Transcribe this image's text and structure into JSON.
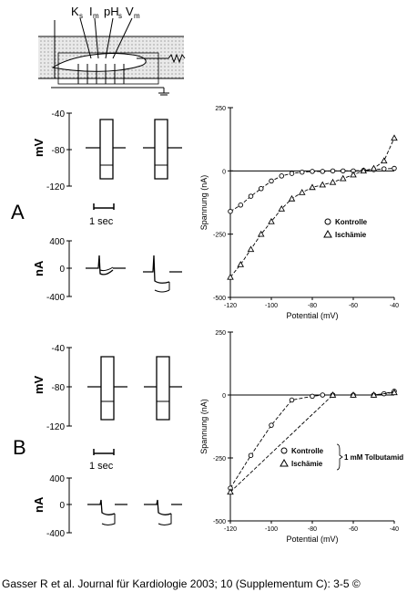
{
  "schematic": {
    "electrode_labels": [
      "K",
      "s",
      "I",
      "m",
      "pH",
      "s",
      "V",
      "m"
    ]
  },
  "panels": [
    {
      "letter": "A",
      "voltage_trace": {
        "ylabel": "mV",
        "ticks": [
          "-40",
          "-80",
          "-120"
        ]
      },
      "time_scale": "1 sec",
      "current_trace": {
        "ylabel": "nA",
        "ticks": [
          "400",
          "0",
          "-400"
        ]
      }
    },
    {
      "letter": "B",
      "voltage_trace": {
        "ylabel": "mV",
        "ticks": [
          "-40",
          "-80",
          "-120"
        ]
      },
      "time_scale": "1 sec",
      "current_trace": {
        "ylabel": "nA",
        "ticks": [
          "400",
          "0",
          "-400"
        ]
      }
    }
  ],
  "chart_data": [
    {
      "type": "scatter",
      "title": "",
      "xlabel": "Potential (mV)",
      "ylabel": "Spannung (nA)",
      "xlim": [
        -120,
        -40
      ],
      "ylim": [
        -500,
        250
      ],
      "x_ticks": [
        "-120",
        "-100",
        "-80",
        "-60",
        "-40"
      ],
      "y_ticks": [
        "250",
        "0",
        "-250",
        "-500"
      ],
      "legend": {
        "placement": "right",
        "note": ""
      },
      "series": [
        {
          "name": "Kontrolle",
          "marker": "circle",
          "x": [
            -120,
            -115,
            -110,
            -105,
            -100,
            -95,
            -90,
            -85,
            -80,
            -75,
            -70,
            -65,
            -60,
            -55,
            -50,
            -45,
            -40
          ],
          "y": [
            -160,
            -135,
            -100,
            -70,
            -40,
            -20,
            -10,
            -5,
            -2,
            -2,
            0,
            0,
            0,
            2,
            5,
            8,
            10
          ]
        },
        {
          "name": "Ischämie",
          "marker": "triangle",
          "x": [
            -120,
            -115,
            -110,
            -105,
            -100,
            -95,
            -90,
            -85,
            -80,
            -75,
            -70,
            -65,
            -60,
            -55,
            -50,
            -45,
            -40
          ],
          "y": [
            -420,
            -370,
            -310,
            -250,
            -200,
            -150,
            -110,
            -85,
            -65,
            -55,
            -45,
            -30,
            -15,
            0,
            10,
            40,
            130
          ]
        }
      ]
    },
    {
      "type": "scatter",
      "title": "",
      "xlabel": "Potential (mV)",
      "ylabel": "Spannung (nA)",
      "xlim": [
        -120,
        -40
      ],
      "ylim": [
        -500,
        250
      ],
      "x_ticks": [
        "-120",
        "-100",
        "-80",
        "-60",
        "-40"
      ],
      "y_ticks": [
        "250",
        "0",
        "-250",
        "-500"
      ],
      "legend": {
        "placement": "right",
        "note": "1 mM Tolbutamid"
      },
      "series": [
        {
          "name": "Kontrolle",
          "marker": "circle",
          "x": [
            -120,
            -110,
            -100,
            -90,
            -80,
            -75,
            -70,
            -60,
            -50,
            -45,
            -40
          ],
          "y": [
            -370,
            -240,
            -120,
            -20,
            -5,
            0,
            0,
            0,
            0,
            5,
            15
          ]
        },
        {
          "name": "Ischämie",
          "marker": "triangle",
          "x": [
            -120,
            -70,
            -60,
            -50,
            -40
          ],
          "y": [
            -385,
            0,
            0,
            0,
            10
          ]
        }
      ]
    }
  ],
  "caption": "Gasser R et al. Journal für Kardiologie 2003; 10 (Supplementum C): 3-5 ©"
}
